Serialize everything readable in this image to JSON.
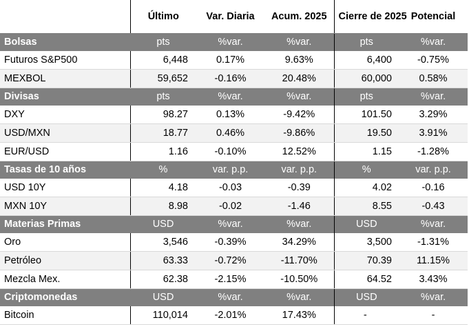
{
  "header": {
    "col1": "Último",
    "col2": "Var. Diaria",
    "col3": "Acum. 2025",
    "col4": "Cierre de 2025",
    "col5": "Potencial"
  },
  "sections": [
    {
      "title": "Bolsas",
      "units": [
        "pts",
        "%var.",
        "%var.",
        "pts",
        "%var."
      ],
      "rows": [
        {
          "name": "Futuros S&P500",
          "last": "6,448",
          "daily": "0.17%",
          "daily_sign": "pos",
          "ytd": "9.63%",
          "ytd_sign": "pos",
          "close": "6,400",
          "potential": "-0.75%",
          "potential_sign": "neg"
        },
        {
          "name": "MEXBOL",
          "last": "59,652",
          "daily": "-0.16%",
          "daily_sign": "neg",
          "ytd": "20.48%",
          "ytd_sign": "pos",
          "close": "60,000",
          "potential": "0.58%",
          "potential_sign": "pos"
        }
      ]
    },
    {
      "title": "Divisas",
      "units": [
        "pts",
        "%var.",
        "%var.",
        "pts",
        "%var."
      ],
      "rows": [
        {
          "name": "DXY",
          "last": "98.27",
          "daily": "0.13%",
          "daily_sign": "pos",
          "ytd": "-9.42%",
          "ytd_sign": "neg",
          "close": "101.50",
          "potential": "3.29%",
          "potential_sign": "pos"
        },
        {
          "name": "USD/MXN",
          "last": "18.77",
          "daily": "0.46%",
          "daily_sign": "neg",
          "ytd": "-9.86%",
          "ytd_sign": "pos",
          "close": "19.50",
          "potential": "3.91%",
          "potential_sign": "neg"
        },
        {
          "name": "EUR/USD",
          "last": "1.16",
          "daily": "-0.10%",
          "daily_sign": "neg",
          "ytd": "12.52%",
          "ytd_sign": "pos",
          "close": "1.15",
          "potential": "-1.28%",
          "potential_sign": "neg"
        }
      ]
    },
    {
      "title": "Tasas de 10 años",
      "units": [
        "%",
        "var. p.p.",
        "var. p.p.",
        "%",
        "var. p.p."
      ],
      "rows": [
        {
          "name": "USD 10Y",
          "last": "4.18",
          "daily": "-0.03",
          "daily_sign": "pos",
          "ytd": "-0.39",
          "ytd_sign": "pos",
          "close": "4.02",
          "potential": "-0.16",
          "potential_sign": "pos"
        },
        {
          "name": "MXN 10Y",
          "last": "8.98",
          "daily": "-0.02",
          "daily_sign": "pos",
          "ytd": "-1.46",
          "ytd_sign": "pos",
          "close": "8.55",
          "potential": "-0.43",
          "potential_sign": "pos"
        }
      ]
    },
    {
      "title": "Materias Primas",
      "units": [
        "USD",
        "%var.",
        "%var.",
        "USD",
        "%var."
      ],
      "rows": [
        {
          "name": "Oro",
          "last": "3,546",
          "daily": "-0.39%",
          "daily_sign": "neg",
          "ytd": "34.29%",
          "ytd_sign": "pos",
          "close": "3,500",
          "potential": "-1.31%",
          "potential_sign": "neg"
        },
        {
          "name": "Petróleo",
          "last": "63.33",
          "daily": "-0.72%",
          "daily_sign": "neg",
          "ytd": "-11.70%",
          "ytd_sign": "neg",
          "close": "70.39",
          "potential": "11.15%",
          "potential_sign": "pos"
        },
        {
          "name": "Mezcla Mex.",
          "last": "62.38",
          "daily": "-2.15%",
          "daily_sign": "neg",
          "ytd": "-10.50%",
          "ytd_sign": "neg",
          "close": "64.52",
          "potential": "3.43%",
          "potential_sign": "pos"
        }
      ]
    },
    {
      "title": "Criptomonedas",
      "units": [
        "USD",
        "%var.",
        "%var.",
        "USD",
        "%var."
      ],
      "rows": [
        {
          "name": "Bitcoin",
          "last": "110,014",
          "daily": "-2.01%",
          "daily_sign": "neg",
          "ytd": "17.43%",
          "ytd_sign": "pos",
          "close": "-",
          "potential": "-",
          "potential_sign": "neu"
        }
      ]
    }
  ]
}
